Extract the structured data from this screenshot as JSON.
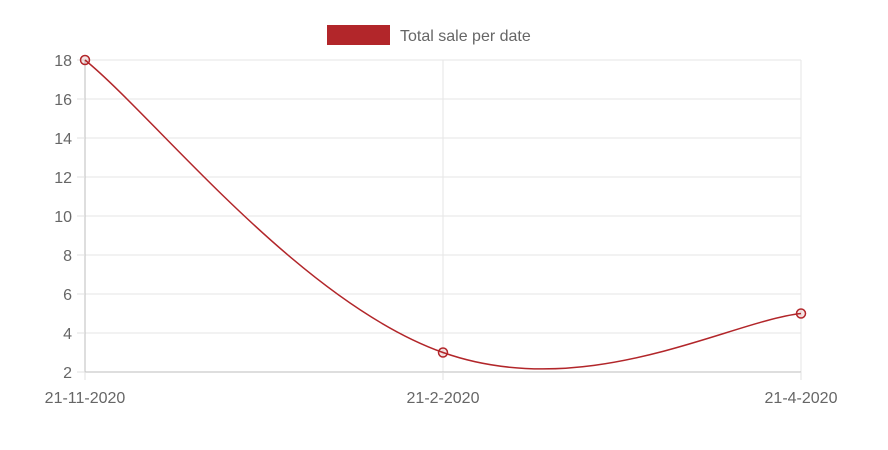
{
  "chart_data": {
    "type": "line",
    "title": "",
    "xlabel": "",
    "ylabel": "",
    "categories": [
      "21-11-2020",
      "21-2-2020",
      "21-4-2020"
    ],
    "series": [
      {
        "name": "Total sale per date",
        "values": [
          18,
          3,
          5
        ],
        "color": "#b2262a"
      }
    ],
    "ylim": [
      2,
      18
    ],
    "yticks": [
      2,
      4,
      6,
      8,
      10,
      12,
      14,
      16,
      18
    ],
    "grid": true,
    "legend_position": "top-center",
    "curve": "smooth"
  }
}
